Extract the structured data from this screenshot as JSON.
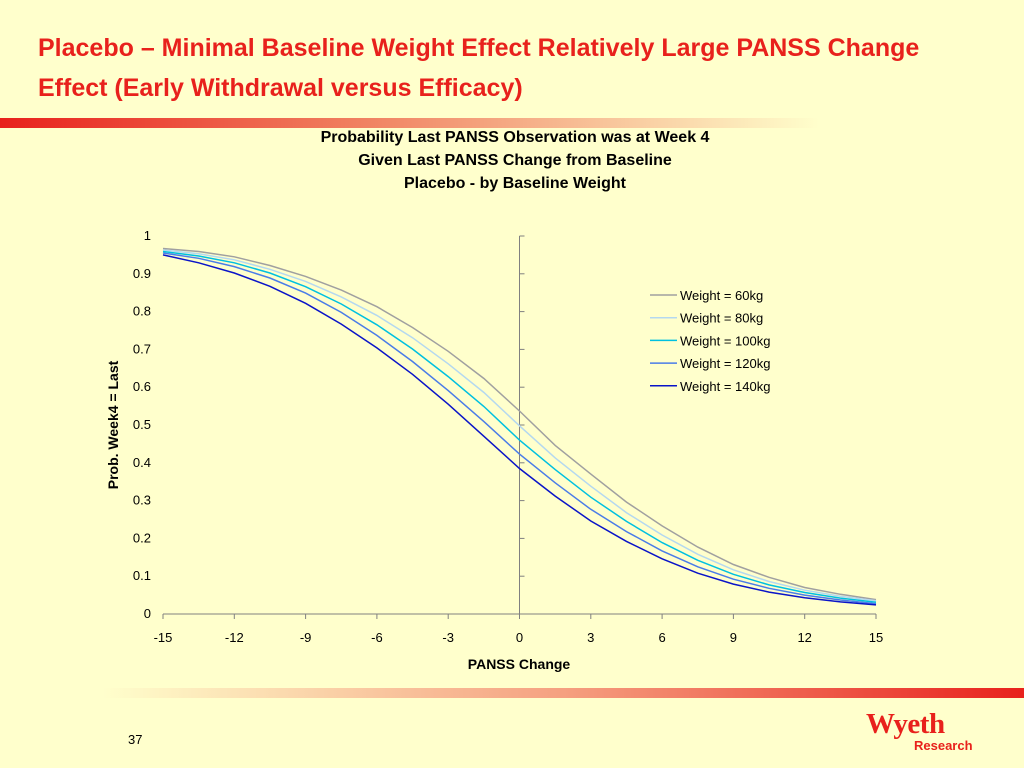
{
  "slide": {
    "title": "Placebo – Minimal Baseline Weight Effect Relatively Large PANSS Change Effect (Early Withdrawal versus Efficacy)",
    "page_number": "37",
    "logo_text": "Wyeth",
    "logo_subtext": "Research",
    "accent_color": "#E8211C",
    "background_color": "#FFFFCC"
  },
  "chart_data": {
    "type": "line",
    "title_lines": [
      "Probability Last PANSS Observation was at Week 4",
      "Given Last PANSS Change from Baseline",
      "Placebo - by Baseline Weight"
    ],
    "xlabel": "PANSS Change",
    "ylabel": "Prob. Week4 = Last",
    "xlim": [
      -15,
      15
    ],
    "ylim": [
      0,
      1
    ],
    "x_ticks": [
      "-15",
      "-12",
      "-9",
      "-6",
      "-3",
      "0",
      "3",
      "6",
      "9",
      "12",
      "15"
    ],
    "y_ticks": [
      "0",
      "0.1",
      "0.2",
      "0.3",
      "0.4",
      "0.5",
      "0.6",
      "0.7",
      "0.8",
      "0.9",
      "1"
    ],
    "legend_position": "right",
    "grid": false,
    "x": [
      -15,
      -13.5,
      -12,
      -10.5,
      -9,
      -7.5,
      -6,
      -4.5,
      -3,
      -1.5,
      0,
      1.5,
      3,
      4.5,
      6,
      7.5,
      9,
      10.5,
      12,
      13.5,
      15
    ],
    "series": [
      {
        "name": "Weight = 60kg",
        "color": "#A0A0A0",
        "values": [
          0.967,
          0.959,
          0.945,
          0.922,
          0.893,
          0.857,
          0.813,
          0.758,
          0.695,
          0.623,
          0.537,
          0.446,
          0.37,
          0.296,
          0.233,
          0.177,
          0.131,
          0.097,
          0.07,
          0.052,
          0.038
        ]
      },
      {
        "name": "Weight = 80kg",
        "color": "#B4D8F0",
        "values": [
          0.963,
          0.953,
          0.937,
          0.912,
          0.88,
          0.839,
          0.79,
          0.731,
          0.662,
          0.586,
          0.498,
          0.413,
          0.338,
          0.268,
          0.209,
          0.158,
          0.117,
          0.086,
          0.063,
          0.047,
          0.035
        ]
      },
      {
        "name": "Weight = 100kg",
        "color": "#00C0E0",
        "values": [
          0.959,
          0.947,
          0.929,
          0.902,
          0.866,
          0.82,
          0.765,
          0.701,
          0.628,
          0.549,
          0.46,
          0.382,
          0.309,
          0.245,
          0.189,
          0.142,
          0.105,
          0.077,
          0.057,
          0.042,
          0.031
        ]
      },
      {
        "name": "Weight = 120kg",
        "color": "#4A7CE8",
        "values": [
          0.955,
          0.941,
          0.919,
          0.889,
          0.849,
          0.798,
          0.737,
          0.668,
          0.591,
          0.509,
          0.423,
          0.347,
          0.277,
          0.218,
          0.167,
          0.125,
          0.092,
          0.068,
          0.05,
          0.037,
          0.027
        ]
      },
      {
        "name": "Weight = 140kg",
        "color": "#0A14C8",
        "values": [
          0.95,
          0.929,
          0.902,
          0.867,
          0.822,
          0.767,
          0.704,
          0.634,
          0.555,
          0.47,
          0.385,
          0.312,
          0.246,
          0.192,
          0.146,
          0.108,
          0.079,
          0.058,
          0.043,
          0.032,
          0.024
        ]
      }
    ]
  }
}
